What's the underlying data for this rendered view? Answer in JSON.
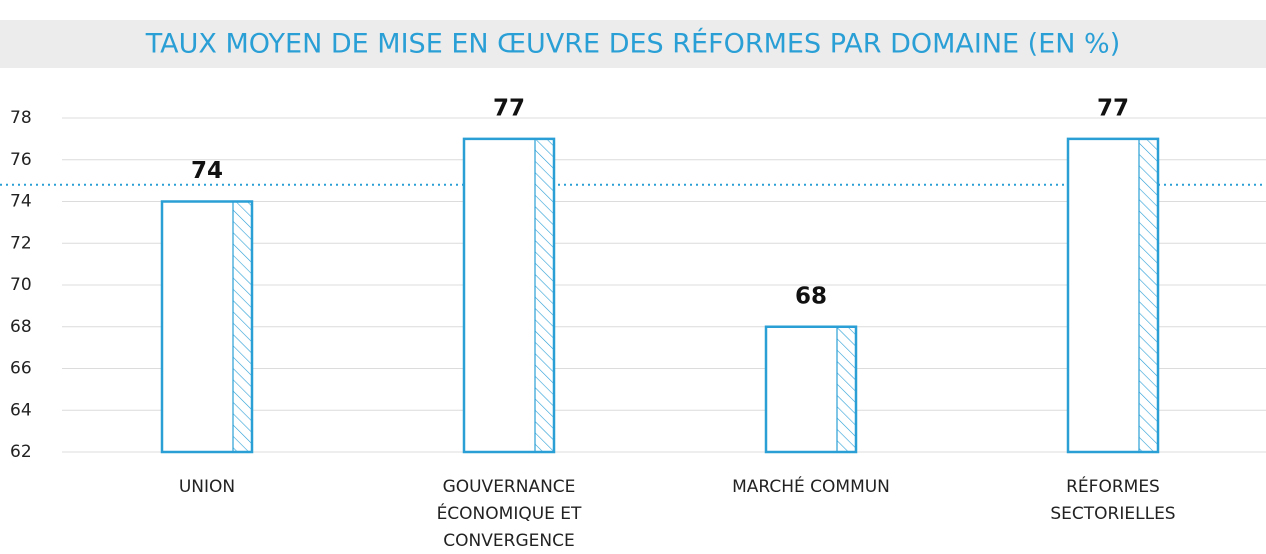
{
  "chart_data": {
    "type": "bar",
    "title": "TAUX MOYEN DE MISE EN ŒUVRE DES RÉFORMES PAR DOMAINE (EN %)",
    "categories": [
      "UNION",
      "GOUVERNANCE ÉCONOMIQUE ET CONVERGENCE",
      "MARCHÉ COMMUN",
      "RÉFORMES SECTORIELLES"
    ],
    "values": [
      74,
      77,
      68,
      77
    ],
    "color": "#2a9fd6",
    "reference_line": 74.8,
    "ylim": [
      62,
      78
    ],
    "yticks": [
      62,
      64,
      66,
      68,
      70,
      72,
      74,
      76,
      78
    ],
    "grid": true
  }
}
